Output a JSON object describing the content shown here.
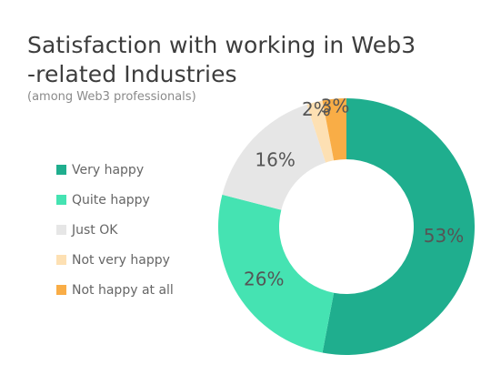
{
  "chart_data": {
    "type": "pie",
    "donut": true,
    "title": "Satisfaction with working in Web3 -related Industries",
    "subtitle": "(among Web3 professionals)",
    "legend_position": "left",
    "slices": [
      {
        "label": "Very happy",
        "value": 53,
        "value_label": "53%",
        "color": "#1fae8e"
      },
      {
        "label": "Quite happy",
        "value": 26,
        "value_label": "26%",
        "color": "#45e3b2"
      },
      {
        "label": "Just OK",
        "value": 16,
        "value_label": "16%",
        "color": "#e6e6e6"
      },
      {
        "label": "Not very happy",
        "value": 2,
        "value_label": "2%",
        "color": "#fde0b3"
      },
      {
        "label": "Not happy at all",
        "value": 3,
        "value_label": "3%",
        "color": "#f9ad46"
      }
    ]
  }
}
